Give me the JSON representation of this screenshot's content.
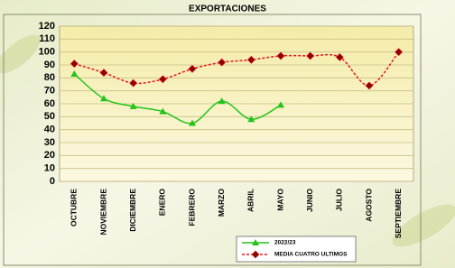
{
  "chart_data": {
    "type": "line",
    "title": "EXPORTACIONES",
    "categories": [
      "OCTUBRE",
      "NOVIEMBRE",
      "DICIEMBRE",
      "ENERO",
      "FEBRERO",
      "MARZO",
      "ABRIL",
      "MAYO",
      "JUNIO",
      "JULIO",
      "AGOSTO",
      "SEPTIEMBRE"
    ],
    "series": [
      {
        "name": "2022/23",
        "color": "#22c41a",
        "marker": "triangle",
        "dashed": false,
        "values": [
          83,
          64,
          58,
          54,
          45,
          62,
          48,
          59,
          null,
          null,
          null,
          null
        ]
      },
      {
        "name": "MEDIA CUATRO ULTIMOS",
        "color": "#e8141b",
        "marker": "diamond",
        "dashed": true,
        "values": [
          91,
          84,
          76,
          79,
          87,
          92,
          94,
          97,
          97,
          96,
          74,
          100
        ]
      }
    ],
    "ylim": [
      0,
      120
    ],
    "yticks": [
      0,
      10,
      20,
      30,
      40,
      50,
      60,
      70,
      80,
      90,
      100,
      110,
      120
    ],
    "grid": true
  }
}
